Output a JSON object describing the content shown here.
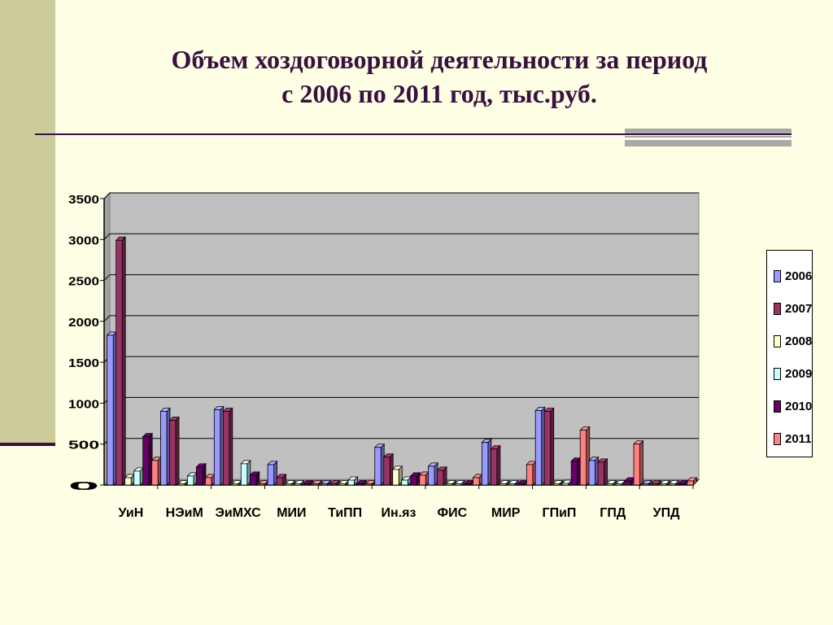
{
  "slide": {
    "title_line1": "Объем хоздоговорной деятельности за период",
    "title_line2": "с 2006 по 2011 год, тыс.руб."
  },
  "chart_data": {
    "type": "bar",
    "title": "",
    "xlabel": "",
    "ylabel": "",
    "ylim": [
      0,
      3500
    ],
    "yticks": [
      0,
      500,
      1000,
      1500,
      2000,
      2500,
      3000,
      3500
    ],
    "grid": true,
    "legend_position": "right",
    "categories": [
      "УиН",
      "НЭиМ",
      "ЭиМХС",
      "МИИ",
      "ТиПП",
      "Ин.яз",
      "ФИС",
      "МИР",
      "ГПиП",
      "ГПД",
      "УПД"
    ],
    "series": [
      {
        "name": "2006",
        "color": "#9999FF",
        "values": [
          1830,
          900,
          920,
          250,
          0,
          460,
          230,
          520,
          910,
          300,
          0
        ]
      },
      {
        "name": "2007",
        "color": "#993366",
        "values": [
          2990,
          790,
          900,
          90,
          0,
          340,
          180,
          440,
          900,
          280,
          0
        ]
      },
      {
        "name": "2008",
        "color": "#FFFFCC",
        "values": [
          90,
          0,
          0,
          0,
          0,
          190,
          0,
          0,
          0,
          0,
          0
        ]
      },
      {
        "name": "2009",
        "color": "#CCFFFF",
        "values": [
          170,
          110,
          260,
          0,
          60,
          60,
          0,
          0,
          20,
          0,
          0
        ]
      },
      {
        "name": "2010",
        "color": "#660066",
        "values": [
          590,
          220,
          120,
          0,
          0,
          110,
          0,
          0,
          290,
          50,
          0
        ]
      },
      {
        "name": "2011",
        "color": "#FF8080",
        "values": [
          300,
          90,
          0,
          0,
          0,
          120,
          90,
          250,
          670,
          500,
          50
        ]
      }
    ]
  }
}
